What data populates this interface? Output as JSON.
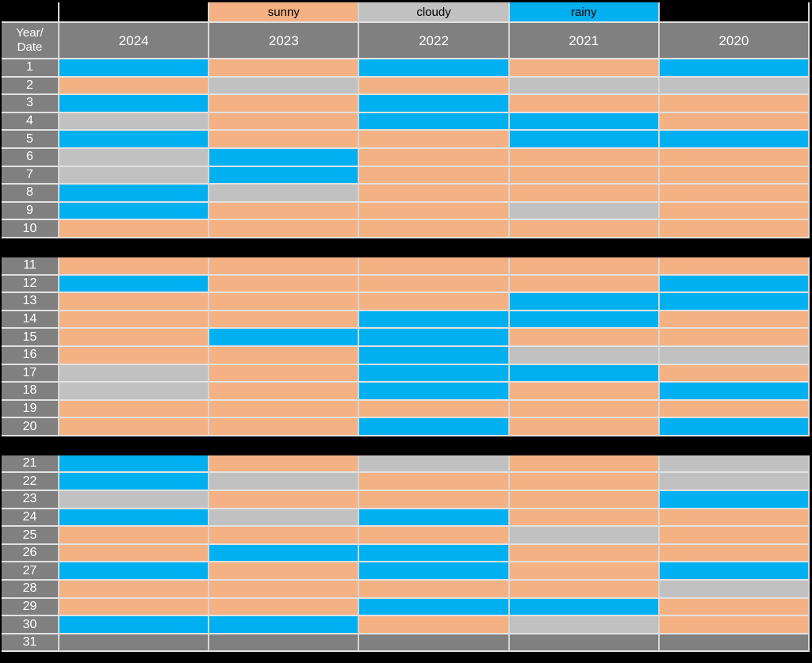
{
  "colors": {
    "sunny": "#F4B183",
    "cloudy": "#C1C1C1",
    "rainy": "#00B0F0",
    "none": "#808080",
    "header_bg": "#808080",
    "header_text": "#FFFFFF",
    "gridline": "#D6D6D6",
    "gridline_h": "#E2E2E2",
    "separator": "#000000"
  },
  "legend": {
    "items": [
      {
        "label": "sunny",
        "type": "sunny"
      },
      {
        "label": "cloudy",
        "type": "cloudy"
      },
      {
        "label": "rainy",
        "type": "rainy"
      }
    ]
  },
  "header": {
    "corner_line1": "Year/",
    "corner_line2": "Date",
    "years": [
      "2024",
      "2023",
      "2022",
      "2021",
      "2020"
    ]
  },
  "chart_data": {
    "type": "heatmap",
    "title": "",
    "description": "Calendar table of daily weather category per date (1-31) for years 2024-2020",
    "row_label_header": "Year/Date",
    "columns": [
      "2024",
      "2023",
      "2022",
      "2021",
      "2020"
    ],
    "legend_entries": [
      "sunny",
      "cloudy",
      "rainy"
    ],
    "legend_position": "top",
    "row_groups": [
      [
        1,
        10
      ],
      [
        11,
        20
      ],
      [
        21,
        31
      ]
    ],
    "rows": [
      {
        "date": "1",
        "values": [
          "rainy",
          "sunny",
          "rainy",
          "sunny",
          "rainy"
        ]
      },
      {
        "date": "2",
        "values": [
          "sunny",
          "cloudy",
          "sunny",
          "cloudy",
          "cloudy"
        ]
      },
      {
        "date": "3",
        "values": [
          "rainy",
          "sunny",
          "rainy",
          "sunny",
          "sunny"
        ]
      },
      {
        "date": "4",
        "values": [
          "cloudy",
          "sunny",
          "rainy",
          "rainy",
          "sunny"
        ]
      },
      {
        "date": "5",
        "values": [
          "rainy",
          "sunny",
          "sunny",
          "rainy",
          "rainy"
        ]
      },
      {
        "date": "6",
        "values": [
          "cloudy",
          "rainy",
          "sunny",
          "sunny",
          "sunny"
        ]
      },
      {
        "date": "7",
        "values": [
          "cloudy",
          "rainy",
          "sunny",
          "sunny",
          "sunny"
        ]
      },
      {
        "date": "8",
        "values": [
          "rainy",
          "cloudy",
          "sunny",
          "sunny",
          "sunny"
        ]
      },
      {
        "date": "9",
        "values": [
          "rainy",
          "sunny",
          "sunny",
          "cloudy",
          "sunny"
        ]
      },
      {
        "date": "10",
        "values": [
          "sunny",
          "sunny",
          "sunny",
          "sunny",
          "sunny"
        ]
      },
      {
        "date": "11",
        "values": [
          "sunny",
          "sunny",
          "sunny",
          "sunny",
          "sunny"
        ]
      },
      {
        "date": "12",
        "values": [
          "rainy",
          "sunny",
          "sunny",
          "sunny",
          "rainy"
        ]
      },
      {
        "date": "13",
        "values": [
          "sunny",
          "sunny",
          "sunny",
          "rainy",
          "rainy"
        ]
      },
      {
        "date": "14",
        "values": [
          "sunny",
          "sunny",
          "rainy",
          "rainy",
          "sunny"
        ]
      },
      {
        "date": "15",
        "values": [
          "sunny",
          "rainy",
          "rainy",
          "sunny",
          "sunny"
        ]
      },
      {
        "date": "16",
        "values": [
          "sunny",
          "sunny",
          "rainy",
          "cloudy",
          "cloudy"
        ]
      },
      {
        "date": "17",
        "values": [
          "cloudy",
          "sunny",
          "rainy",
          "rainy",
          "sunny"
        ]
      },
      {
        "date": "18",
        "values": [
          "cloudy",
          "sunny",
          "rainy",
          "sunny",
          "rainy"
        ]
      },
      {
        "date": "19",
        "values": [
          "sunny",
          "sunny",
          "sunny",
          "sunny",
          "sunny"
        ]
      },
      {
        "date": "20",
        "values": [
          "sunny",
          "sunny",
          "rainy",
          "sunny",
          "rainy"
        ]
      },
      {
        "date": "21",
        "values": [
          "rainy",
          "sunny",
          "cloudy",
          "sunny",
          "cloudy"
        ]
      },
      {
        "date": "22",
        "values": [
          "rainy",
          "cloudy",
          "sunny",
          "sunny",
          "cloudy"
        ]
      },
      {
        "date": "23",
        "values": [
          "cloudy",
          "sunny",
          "sunny",
          "sunny",
          "rainy"
        ]
      },
      {
        "date": "24",
        "values": [
          "rainy",
          "cloudy",
          "rainy",
          "sunny",
          "sunny"
        ]
      },
      {
        "date": "25",
        "values": [
          "sunny",
          "sunny",
          "sunny",
          "cloudy",
          "sunny"
        ]
      },
      {
        "date": "26",
        "values": [
          "sunny",
          "rainy",
          "rainy",
          "sunny",
          "sunny"
        ]
      },
      {
        "date": "27",
        "values": [
          "rainy",
          "sunny",
          "rainy",
          "sunny",
          "rainy"
        ]
      },
      {
        "date": "28",
        "values": [
          "sunny",
          "sunny",
          "sunny",
          "sunny",
          "cloudy"
        ]
      },
      {
        "date": "29",
        "values": [
          "sunny",
          "sunny",
          "rainy",
          "rainy",
          "sunny"
        ]
      },
      {
        "date": "30",
        "values": [
          "rainy",
          "rainy",
          "sunny",
          "cloudy",
          "sunny"
        ]
      },
      {
        "date": "31",
        "values": [
          "none",
          "none",
          "none",
          "none",
          "none"
        ]
      }
    ]
  }
}
